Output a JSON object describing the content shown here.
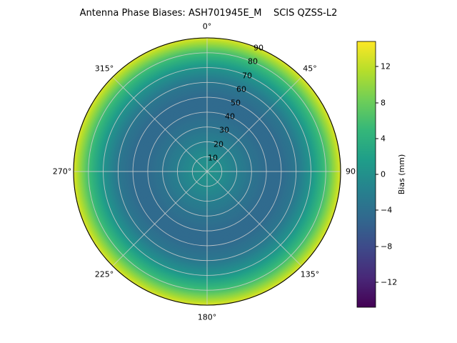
{
  "figure": {
    "title": "Antenna Phase Biases: ASH701945E_M    SCIS QZSS-L2"
  },
  "chart_data": {
    "type": "heatmap",
    "projection": "polar",
    "title": "Antenna Phase Biases: ASH701945E_M    SCIS QZSS-L2",
    "grid": true,
    "colormap": "viridis",
    "colormap_stops": [
      "#440154",
      "#482878",
      "#3e4989",
      "#31688e",
      "#26828e",
      "#1f9e89",
      "#35b779",
      "#6ece58",
      "#b5de2b",
      "#fde725"
    ],
    "colorbar": {
      "label": "Bias (mm)",
      "position": "right",
      "vmin": -14.8,
      "vmax": 14.8,
      "tick_values": [
        12,
        8,
        4,
        0,
        -4,
        -8,
        -12
      ],
      "tick_labels": [
        "12",
        "8",
        "4",
        "0",
        "−4",
        "−8",
        "−12"
      ]
    },
    "angular_tick_degrees": [
      0,
      45,
      90,
      135,
      180,
      225,
      270,
      315
    ],
    "angular_tick_labels": [
      "0°",
      "45°",
      "90",
      "135°",
      "180°",
      "225°",
      "270°",
      "315°"
    ],
    "radial_ticks": [
      10,
      20,
      30,
      40,
      50,
      60,
      70,
      80,
      90
    ],
    "radial_tick_labels": [
      "10",
      "20",
      "30",
      "40",
      "50",
      "60",
      "70",
      "80",
      "90"
    ],
    "radial_axis_max": 90,
    "radial_label_angle_deg": 22.5,
    "radial_profile": {
      "zenith_deg": [
        0,
        10,
        20,
        30,
        40,
        50,
        60,
        70,
        80,
        90
      ],
      "bias_mm": [
        0.5,
        -0.5,
        -2.0,
        -3.5,
        -4.5,
        -4.5,
        -3.0,
        0.5,
        6.0,
        13.5
      ]
    }
  }
}
